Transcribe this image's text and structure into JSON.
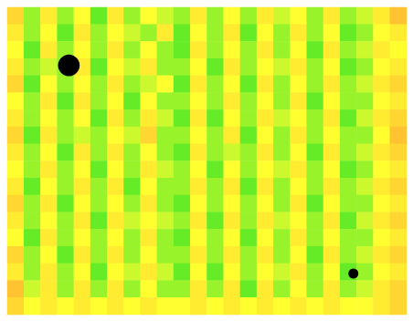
{
  "chart_data": {
    "type": "heatmap",
    "tick_labels": false,
    "grid": false,
    "zlim": [
      0,
      1
    ],
    "colors": [
      "#00e020",
      "#ffff30",
      "#ff9a30"
    ],
    "cells": [
      [
        0.7,
        0.3,
        0.6,
        0.3,
        0.5,
        0.2,
        0.6,
        0.3,
        0.5,
        0.4,
        0.3,
        0.6,
        0.3,
        0.5,
        0.3,
        0.6,
        0.4,
        0.5,
        0.3,
        0.6,
        0.3,
        0.4,
        0.6,
        0.8
      ],
      [
        0.6,
        0.3,
        0.5,
        0.2,
        0.6,
        0.3,
        0.5,
        0.4,
        0.3,
        0.6,
        0.2,
        0.5,
        0.3,
        0.6,
        0.2,
        0.5,
        0.3,
        0.6,
        0.3,
        0.5,
        0.2,
        0.3,
        0.5,
        0.6
      ],
      [
        0.5,
        0.2,
        0.6,
        0.3,
        0.5,
        0.3,
        0.6,
        0.3,
        0.5,
        0.3,
        0.2,
        0.6,
        0.3,
        0.5,
        0.3,
        0.6,
        0.3,
        0.5,
        0.2,
        0.6,
        0.3,
        0.4,
        0.6,
        0.5
      ],
      [
        0.6,
        0.3,
        0.4,
        0.3,
        0.6,
        0.2,
        0.5,
        0.4,
        0.6,
        0.3,
        0.3,
        0.5,
        0.2,
        0.6,
        0.3,
        0.5,
        0.4,
        0.6,
        0.3,
        0.5,
        0.2,
        0.3,
        0.5,
        0.6
      ],
      [
        0.7,
        0.2,
        0.5,
        0.3,
        0.5,
        0.3,
        0.6,
        0.3,
        0.4,
        0.5,
        0.2,
        0.6,
        0.3,
        0.5,
        0.2,
        0.6,
        0.3,
        0.5,
        0.3,
        0.6,
        0.3,
        0.4,
        0.6,
        0.7
      ],
      [
        0.5,
        0.3,
        0.6,
        0.2,
        0.6,
        0.3,
        0.5,
        0.2,
        0.5,
        0.3,
        0.3,
        0.5,
        0.3,
        0.6,
        0.3,
        0.5,
        0.3,
        0.6,
        0.2,
        0.5,
        0.3,
        0.3,
        0.5,
        0.6
      ],
      [
        0.6,
        0.3,
        0.5,
        0.3,
        0.5,
        0.2,
        0.6,
        0.3,
        0.6,
        0.4,
        0.2,
        0.6,
        0.2,
        0.5,
        0.3,
        0.6,
        0.4,
        0.5,
        0.3,
        0.6,
        0.2,
        0.4,
        0.6,
        0.7
      ],
      [
        0.7,
        0.2,
        0.6,
        0.3,
        0.4,
        0.3,
        0.5,
        0.4,
        0.7,
        0.3,
        0.3,
        0.5,
        0.3,
        0.6,
        0.2,
        0.5,
        0.3,
        0.6,
        0.3,
        0.5,
        0.3,
        0.3,
        0.5,
        0.8
      ],
      [
        0.6,
        0.3,
        0.5,
        0.2,
        0.6,
        0.3,
        0.6,
        0.3,
        0.5,
        0.3,
        0.2,
        0.6,
        0.3,
        0.4,
        0.3,
        0.6,
        0.3,
        0.5,
        0.2,
        0.6,
        0.3,
        0.4,
        0.6,
        0.7
      ],
      [
        0.5,
        0.3,
        0.6,
        0.3,
        0.5,
        0.2,
        0.5,
        0.3,
        0.6,
        0.4,
        0.3,
        0.5,
        0.2,
        0.5,
        0.3,
        0.5,
        0.4,
        0.6,
        0.3,
        0.5,
        0.2,
        0.3,
        0.5,
        0.6
      ],
      [
        0.6,
        0.2,
        0.5,
        0.3,
        0.6,
        0.3,
        0.6,
        0.2,
        0.5,
        0.3,
        0.3,
        0.6,
        0.3,
        0.6,
        0.2,
        0.6,
        0.3,
        0.5,
        0.3,
        0.6,
        0.3,
        0.4,
        0.6,
        0.7
      ],
      [
        0.7,
        0.3,
        0.6,
        0.2,
        0.5,
        0.3,
        0.5,
        0.3,
        0.6,
        0.3,
        0.2,
        0.5,
        0.3,
        0.5,
        0.3,
        0.5,
        0.3,
        0.6,
        0.2,
        0.5,
        0.3,
        0.3,
        0.5,
        0.6
      ],
      [
        0.6,
        0.3,
        0.5,
        0.3,
        0.6,
        0.2,
        0.6,
        0.4,
        0.5,
        0.4,
        0.3,
        0.6,
        0.2,
        0.6,
        0.3,
        0.6,
        0.4,
        0.5,
        0.3,
        0.6,
        0.2,
        0.4,
        0.6,
        0.7
      ],
      [
        0.5,
        0.2,
        0.6,
        0.3,
        0.5,
        0.3,
        0.5,
        0.3,
        0.6,
        0.3,
        0.2,
        0.5,
        0.3,
        0.5,
        0.2,
        0.5,
        0.3,
        0.6,
        0.3,
        0.5,
        0.3,
        0.3,
        0.5,
        0.6
      ],
      [
        0.7,
        0.3,
        0.5,
        0.2,
        0.6,
        0.3,
        0.6,
        0.3,
        0.5,
        0.3,
        0.3,
        0.6,
        0.3,
        0.6,
        0.3,
        0.6,
        0.3,
        0.5,
        0.2,
        0.6,
        0.3,
        0.4,
        0.6,
        0.7
      ],
      [
        0.6,
        0.3,
        0.6,
        0.3,
        0.5,
        0.2,
        0.5,
        0.4,
        0.6,
        0.4,
        0.2,
        0.5,
        0.2,
        0.5,
        0.3,
        0.5,
        0.4,
        0.6,
        0.3,
        0.5,
        0.2,
        0.3,
        0.5,
        0.6
      ],
      [
        0.8,
        0.4,
        0.6,
        0.3,
        0.6,
        0.3,
        0.6,
        0.3,
        0.5,
        0.3,
        0.3,
        0.6,
        0.3,
        0.6,
        0.2,
        0.6,
        0.3,
        0.5,
        0.3,
        0.6,
        0.3,
        0.4,
        0.6,
        0.7
      ],
      [
        0.7,
        0.5,
        0.6,
        0.5,
        0.6,
        0.5,
        0.6,
        0.5,
        0.6,
        0.5,
        0.5,
        0.6,
        0.5,
        0.6,
        0.5,
        0.6,
        0.5,
        0.6,
        0.5,
        0.6,
        0.5,
        0.5,
        0.6,
        0.7
      ]
    ],
    "markers": {
      "color": "#000000",
      "x": [
        3.7,
        20.8
      ],
      "y": [
        3.4,
        15.6
      ],
      "size": [
        1.3,
        0.6
      ]
    }
  }
}
